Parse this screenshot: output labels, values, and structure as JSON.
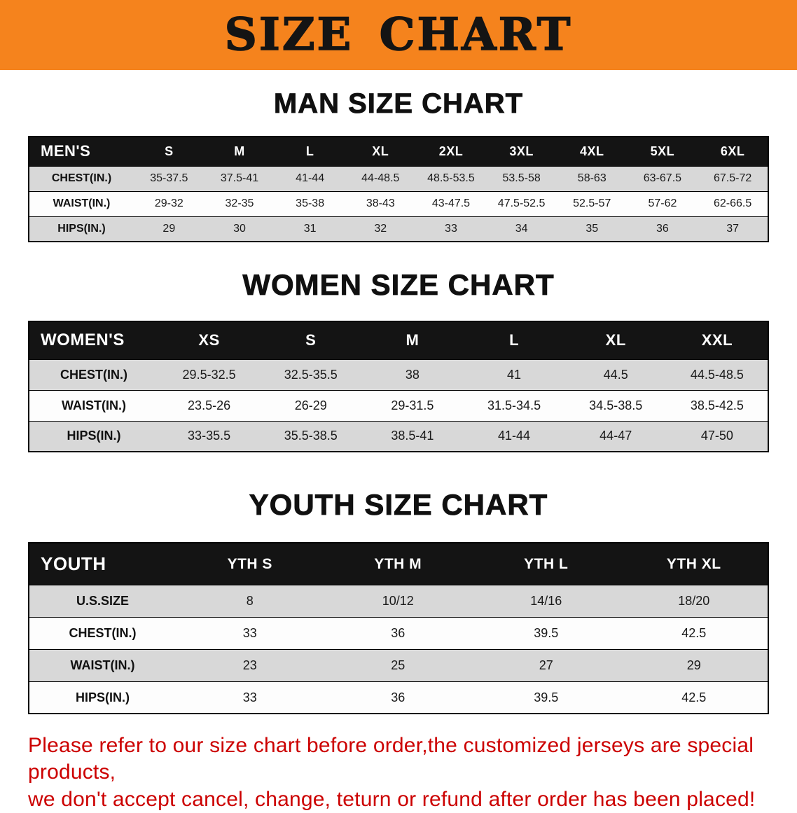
{
  "banner": {
    "title": "SIZE CHART"
  },
  "colors": {
    "banner_bg": "#F5831D",
    "table_header_bg": "#141414",
    "alt_row_bg": "#D8D8D8",
    "disclaimer_red": "#CC0000"
  },
  "men": {
    "heading": "MAN SIZE CHART",
    "header": [
      "MEN'S",
      "S",
      "M",
      "L",
      "XL",
      "2XL",
      "3XL",
      "4XL",
      "5XL",
      "6XL"
    ],
    "rows": [
      {
        "label": "CHEST(IN.)",
        "values": [
          "35-37.5",
          "37.5-41",
          "41-44",
          "44-48.5",
          "48.5-53.5",
          "53.5-58",
          "58-63",
          "63-67.5",
          "67.5-72"
        ]
      },
      {
        "label": "WAIST(IN.)",
        "values": [
          "29-32",
          "32-35",
          "35-38",
          "38-43",
          "43-47.5",
          "47.5-52.5",
          "52.5-57",
          "57-62",
          "62-66.5"
        ]
      },
      {
        "label": "HIPS(IN.)",
        "values": [
          "29",
          "30",
          "31",
          "32",
          "33",
          "34",
          "35",
          "36",
          "37"
        ]
      }
    ]
  },
  "women": {
    "heading": "WOMEN SIZE CHART",
    "header": [
      "WOMEN'S",
      "XS",
      "S",
      "M",
      "L",
      "XL",
      "XXL"
    ],
    "rows": [
      {
        "label": "CHEST(IN.)",
        "values": [
          "29.5-32.5",
          "32.5-35.5",
          "38",
          "41",
          "44.5",
          "44.5-48.5"
        ]
      },
      {
        "label": "WAIST(IN.)",
        "values": [
          "23.5-26",
          "26-29",
          "29-31.5",
          "31.5-34.5",
          "34.5-38.5",
          "38.5-42.5"
        ]
      },
      {
        "label": "HIPS(IN.)",
        "values": [
          "33-35.5",
          "35.5-38.5",
          "38.5-41",
          "41-44",
          "44-47",
          "47-50"
        ]
      }
    ]
  },
  "youth": {
    "heading": "YOUTH SIZE CHART",
    "header": [
      "YOUTH",
      "YTH S",
      "YTH M",
      "YTH L",
      "YTH XL"
    ],
    "rows": [
      {
        "label": "U.S.SIZE",
        "values": [
          "8",
          "10/12",
          "14/16",
          "18/20"
        ]
      },
      {
        "label": "CHEST(IN.)",
        "values": [
          "33",
          "36",
          "39.5",
          "42.5"
        ]
      },
      {
        "label": "WAIST(IN.)",
        "values": [
          "23",
          "25",
          "27",
          "29"
        ]
      },
      {
        "label": "HIPS(IN.)",
        "values": [
          "33",
          "36",
          "39.5",
          "42.5"
        ]
      }
    ]
  },
  "disclaimer": {
    "line1": "Please refer to our size chart before order,the customized jerseys are special products,",
    "line2": "we don't accept cancel, change, teturn or refund after order has been placed!"
  }
}
